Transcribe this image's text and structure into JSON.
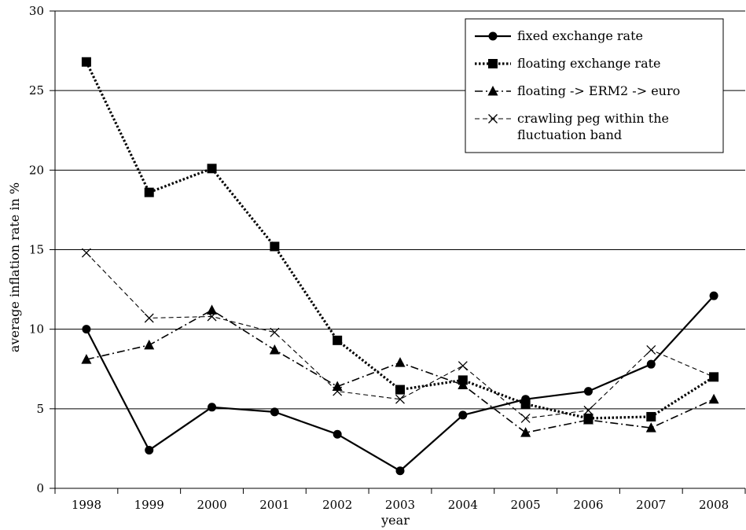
{
  "chart_data": {
    "type": "line",
    "title": "",
    "xlabel": "year",
    "ylabel": "average inflation rate in %",
    "categories": [
      "1998",
      "1999",
      "2000",
      "2001",
      "2002",
      "2003",
      "2004",
      "2005",
      "2006",
      "2007",
      "2008"
    ],
    "ylim": [
      0,
      30
    ],
    "yticks": [
      0,
      5,
      10,
      15,
      20,
      25,
      30
    ],
    "grid": true,
    "legend_position": "top-right",
    "series": [
      {
        "name": "fixed exchange rate",
        "style": "solid",
        "marker": "circle",
        "values": [
          10.0,
          2.4,
          5.1,
          4.8,
          3.4,
          1.1,
          4.6,
          5.6,
          6.1,
          7.8,
          12.1
        ]
      },
      {
        "name": "floating exchange rate",
        "style": "dotted",
        "marker": "square",
        "values": [
          26.8,
          18.6,
          20.1,
          15.2,
          9.3,
          6.2,
          6.8,
          5.3,
          4.4,
          4.5,
          7.0
        ]
      },
      {
        "name": "floating -> ERM2 -> euro",
        "style": "dashdot",
        "marker": "triangle",
        "values": [
          8.1,
          9.0,
          11.2,
          8.7,
          6.4,
          7.9,
          6.5,
          3.5,
          4.3,
          3.8,
          5.6
        ]
      },
      {
        "name": "crawling peg within the fluctuation band",
        "name_lines": [
          "crawling peg within the",
          "fluctuation band"
        ],
        "style": "dashed",
        "marker": "x",
        "values": [
          14.8,
          10.7,
          10.8,
          9.8,
          6.1,
          5.6,
          7.7,
          4.4,
          4.9,
          8.7,
          7.0
        ]
      }
    ]
  }
}
